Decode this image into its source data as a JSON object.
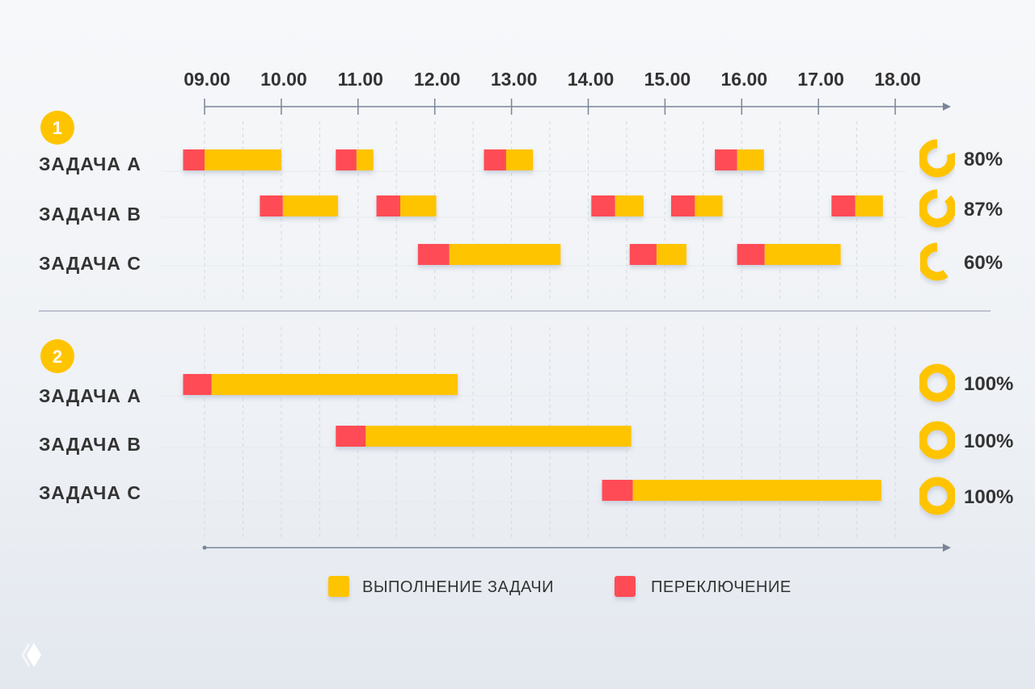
{
  "chart_data": {
    "type": "gantt",
    "x_ticks": [
      "09.00",
      "10.00",
      "11.00",
      "12.00",
      "13.00",
      "14.00",
      "15.00",
      "16.00",
      "17.00",
      "18.00"
    ],
    "xlim_hours": [
      8.7,
      18.7
    ],
    "colors": {
      "work": "#FFC400",
      "switch": "#FF4B55",
      "badge": "#FFC400"
    },
    "legend": [
      {
        "key": "work",
        "label": "ВЫПОЛНЕНИЕ ЗАДАЧИ"
      },
      {
        "key": "switch",
        "label": "ПЕРЕКЛЮЧЕНИЕ"
      }
    ],
    "panels": [
      {
        "number": "1",
        "rows": [
          {
            "label": "ЗАДАЧА A",
            "percent": 80,
            "percent_label": "80%",
            "segments": [
              [
                8.72,
                9.0,
                10.0
              ],
              [
                10.71,
                10.98,
                11.2
              ],
              [
                12.64,
                12.93,
                13.28
              ],
              [
                15.65,
                15.94,
                16.29
              ]
            ]
          },
          {
            "label": "ЗАДАЧА B",
            "percent": 87,
            "percent_label": "87%",
            "segments": [
              [
                9.72,
                10.02,
                10.74
              ],
              [
                11.24,
                11.55,
                12.02
              ],
              [
                14.04,
                14.35,
                14.72
              ],
              [
                15.08,
                15.39,
                15.75
              ],
              [
                17.17,
                17.48,
                17.84
              ]
            ]
          },
          {
            "label": "ЗАДАЧА C",
            "percent": 60,
            "percent_label": "60%",
            "segments": [
              [
                11.78,
                12.19,
                13.64
              ],
              [
                14.54,
                14.89,
                15.28
              ],
              [
                15.94,
                16.3,
                17.29
              ]
            ]
          }
        ]
      },
      {
        "number": "2",
        "rows": [
          {
            "label": "ЗАДАЧА A",
            "percent": 100,
            "percent_label": "100%",
            "segments": [
              [
                8.72,
                9.09,
                12.3
              ]
            ]
          },
          {
            "label": "ЗАДАЧА B",
            "percent": 100,
            "percent_label": "100%",
            "segments": [
              [
                10.71,
                11.1,
                14.56
              ]
            ]
          },
          {
            "label": "ЗАДАЧА C",
            "percent": 100,
            "percent_label": "100%",
            "segments": [
              [
                14.18,
                14.58,
                17.82
              ]
            ]
          }
        ]
      }
    ]
  },
  "logo": {
    "icon": "diamond-logo-icon"
  }
}
